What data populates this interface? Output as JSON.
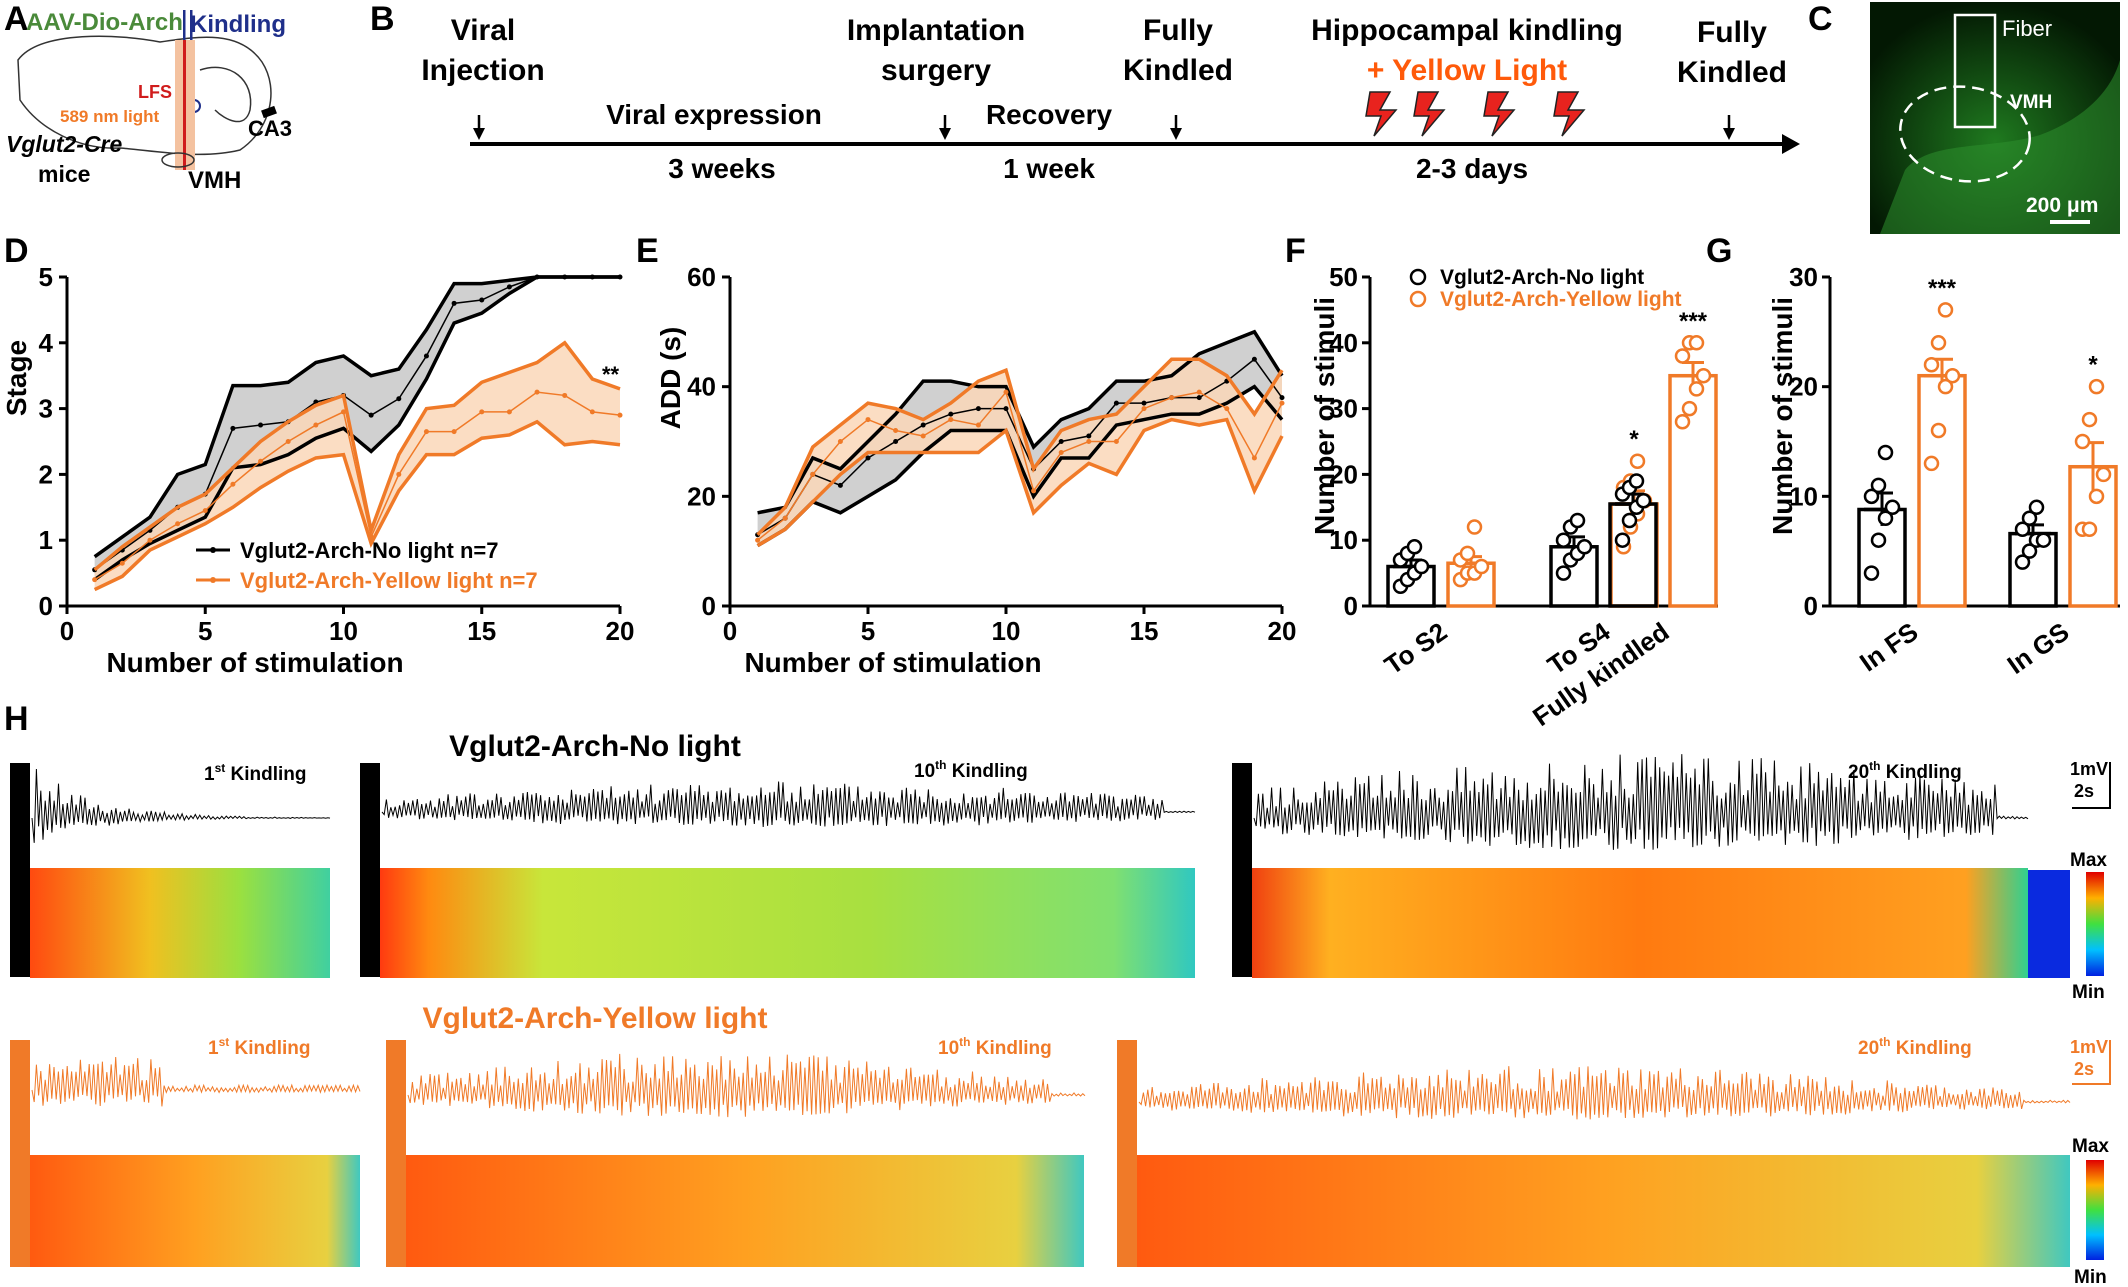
{
  "panel_letters": {
    "a": "A",
    "b": "B",
    "c": "C",
    "d": "D",
    "e": "E",
    "f": "F",
    "g": "G",
    "h": "H"
  },
  "panel_a": {
    "construct": "AAV-Dio-Arch",
    "kindling": "Kindling",
    "lfs": "LFS",
    "light": "589 nm light",
    "ca3": "CA3",
    "mouse_line": "Vglut2-Cre",
    "mice": "mice",
    "vmh": "VMH"
  },
  "panel_b": {
    "events": [
      {
        "label_lines": [
          "Viral",
          "Injection"
        ]
      },
      {
        "label_lines": [
          "Implantation",
          "surgery"
        ]
      },
      {
        "label_lines": [
          "Fully",
          "Kindled"
        ]
      },
      {
        "label_lines": [
          "Hippocampal kindling",
          "+ Yellow Light"
        ]
      },
      {
        "label_lines": [
          "Fully",
          "Kindled"
        ]
      }
    ],
    "phases": [
      "Viral expression",
      "Recovery"
    ],
    "durations": [
      "3 weeks",
      "1 week",
      "2-3 days"
    ],
    "colors": {
      "accent": "#ff5a0a",
      "bolt": "#e8231e"
    }
  },
  "panel_c": {
    "fiber": "Fiber",
    "vmh": "VMH",
    "scale": "200 μm"
  },
  "chart_data": [
    {
      "panel": "D",
      "type": "line",
      "xlabel": "Number of stimulation",
      "ylabel": "Stage",
      "xlim": [
        0,
        20
      ],
      "ylim": [
        0,
        5
      ],
      "xticks": [
        0,
        5,
        10,
        15,
        20
      ],
      "yticks": [
        0,
        1,
        2,
        3,
        4,
        5
      ],
      "x": [
        1,
        2,
        3,
        4,
        5,
        6,
        7,
        8,
        9,
        10,
        11,
        12,
        13,
        14,
        15,
        16,
        17,
        18,
        19,
        20
      ],
      "series": [
        {
          "name": "Vglut2-Arch-No light n=7",
          "color": "#000000",
          "band_color": "#c8c8c8",
          "mean": [
            0.55,
            0.85,
            1.15,
            1.5,
            1.7,
            2.7,
            2.75,
            2.8,
            3.1,
            3.2,
            2.9,
            3.15,
            3.8,
            4.6,
            4.65,
            4.85,
            5,
            5,
            5,
            5
          ],
          "upper": [
            0.75,
            1.05,
            1.35,
            2.0,
            2.15,
            3.35,
            3.35,
            3.4,
            3.7,
            3.8,
            3.5,
            3.6,
            4.2,
            4.9,
            4.9,
            4.95,
            5,
            5,
            5,
            5
          ],
          "lower": [
            0.4,
            0.7,
            0.95,
            1.15,
            1.35,
            2.1,
            2.15,
            2.3,
            2.55,
            2.7,
            2.35,
            2.75,
            3.45,
            4.3,
            4.45,
            4.75,
            5,
            5,
            5,
            5
          ]
        },
        {
          "name": "Vglut2-Arch-Yellow light n=7",
          "color": "#f07a28",
          "band_color": "#fad7b8",
          "mean": [
            0.4,
            0.65,
            1.0,
            1.25,
            1.45,
            1.85,
            2.2,
            2.5,
            2.75,
            2.95,
            1.05,
            2.0,
            2.65,
            2.65,
            2.95,
            2.95,
            3.25,
            3.2,
            2.95,
            2.9
          ],
          "upper": [
            0.55,
            0.9,
            1.2,
            1.5,
            1.7,
            2.1,
            2.5,
            2.8,
            3.05,
            3.2,
            1.15,
            2.3,
            3.0,
            3.05,
            3.4,
            3.55,
            3.7,
            4.0,
            3.45,
            3.3
          ],
          "lower": [
            0.25,
            0.45,
            0.85,
            1.05,
            1.25,
            1.5,
            1.8,
            2.05,
            2.25,
            2.3,
            0.95,
            1.75,
            2.3,
            2.3,
            2.55,
            2.6,
            2.8,
            2.45,
            2.5,
            2.45
          ]
        }
      ],
      "annotation": "**"
    },
    {
      "panel": "E",
      "type": "line",
      "xlabel": "Number of stimulation",
      "ylabel": "ADD (s)",
      "xlim": [
        0,
        20
      ],
      "ylim": [
        0,
        60
      ],
      "xticks": [
        0,
        5,
        10,
        15,
        20
      ],
      "yticks": [
        0,
        20,
        40,
        60
      ],
      "x": [
        1,
        2,
        3,
        4,
        5,
        6,
        7,
        8,
        9,
        10,
        11,
        12,
        13,
        14,
        15,
        16,
        17,
        18,
        19,
        20
      ],
      "series": [
        {
          "name": "Vglut2-Arch-No light n=7",
          "color": "#000000",
          "band_color": "#c8c8c8",
          "mean": [
            13,
            16,
            24,
            22,
            27,
            30,
            33,
            35,
            36,
            36,
            25,
            30,
            31,
            37,
            37,
            38,
            38,
            41,
            45,
            38
          ],
          "upper": [
            17,
            18,
            27,
            25,
            30,
            35,
            41,
            41,
            40,
            40,
            29,
            34,
            36,
            41,
            41,
            42,
            46,
            48,
            50,
            42
          ],
          "lower": [
            11,
            14,
            19,
            17,
            20,
            23,
            28,
            32,
            32,
            32,
            20,
            27,
            27,
            33,
            34,
            35,
            35,
            37,
            40,
            34
          ]
        },
        {
          "name": "Vglut2-Arch-Yellow light n=7",
          "color": "#f07a28",
          "band_color": "#fad7b8",
          "mean": [
            12,
            16,
            24,
            30,
            34,
            32,
            31,
            34,
            33,
            39,
            21,
            28,
            30,
            30,
            36,
            38,
            39,
            36,
            27,
            37
          ],
          "upper": [
            13,
            18,
            29,
            33,
            37,
            36,
            34,
            37,
            41,
            43,
            25,
            32,
            34,
            35,
            40,
            45,
            45,
            42,
            35,
            43
          ],
          "lower": [
            11,
            14,
            19,
            24,
            28,
            28,
            28,
            28,
            28,
            32,
            17,
            22,
            26,
            24,
            32,
            34,
            33,
            34,
            21,
            31
          ]
        }
      ]
    },
    {
      "panel": "F",
      "type": "bar",
      "ylabel": "Number of stimuli",
      "ylim": [
        0,
        50
      ],
      "yticks": [
        0,
        10,
        20,
        30,
        40,
        50
      ],
      "categories": [
        "To S2",
        "To S4",
        "Fully kindled"
      ],
      "series": [
        {
          "name": "Vglut2-Arch-No light",
          "color": "#000000",
          "values": [
            6,
            9,
            15.5
          ],
          "sem": [
            1,
            1.5,
            1.5
          ],
          "points": [
            [
              3,
              4,
              5,
              6,
              7,
              8,
              9
            ],
            [
              5,
              7,
              8,
              9,
              10,
              12,
              13
            ],
            [
              10,
              13,
              15,
              16,
              17,
              18,
              19
            ]
          ]
        },
        {
          "name": "Vglut2-Arch-Yellow light",
          "color": "#f07a28",
          "values": [
            6.5,
            15.5,
            35
          ],
          "sem": [
            1,
            2,
            2
          ],
          "points": [
            [
              4,
              5,
              5,
              6,
              7,
              8,
              12
            ],
            [
              9,
              12,
              14,
              16,
              18,
              19,
              22
            ],
            [
              28,
              30,
              33,
              35,
              38,
              40,
              40
            ]
          ]
        }
      ],
      "annotations": [
        "",
        "*",
        "***"
      ]
    },
    {
      "panel": "G",
      "type": "bar",
      "ylabel": "Number of stimuli",
      "ylim": [
        0,
        30
      ],
      "yticks": [
        0,
        10,
        20,
        30
      ],
      "categories": [
        "In FS",
        "In GS"
      ],
      "series": [
        {
          "name": "Vglut2-Arch-No light",
          "color": "#000000",
          "values": [
            8.8,
            6.6
          ],
          "sem": [
            1.5,
            0.8
          ],
          "points": [
            [
              3,
              6,
              8,
              9,
              10,
              11,
              14
            ],
            [
              4,
              5,
              6,
              6,
              7,
              8,
              9
            ]
          ]
        },
        {
          "name": "Vglut2-Arch-Yellow light",
          "color": "#f07a28",
          "values": [
            21,
            12.7
          ],
          "sem": [
            1.5,
            2.2
          ],
          "points": [
            [
              13,
              16,
              20,
              21,
              22,
              24,
              27
            ],
            [
              7,
              7,
              10,
              12,
              15,
              17,
              20
            ]
          ]
        }
      ],
      "annotations": [
        "***",
        "*"
      ]
    }
  ],
  "panel_h": {
    "no_light_title": "Vglut2-Arch-No light",
    "yellow_title": "Vglut2-Arch-Yellow light",
    "labels": [
      {
        "num": "1",
        "sup": "st",
        "word": " Kindling"
      },
      {
        "num": "10",
        "sup": "th",
        "word": " Kindling"
      },
      {
        "num": "20",
        "sup": "th",
        "word": " Kindling"
      }
    ],
    "scale_mv": "1mV",
    "scale_s": "2s",
    "colorbar_max": "Max",
    "colorbar_min": "Min"
  }
}
